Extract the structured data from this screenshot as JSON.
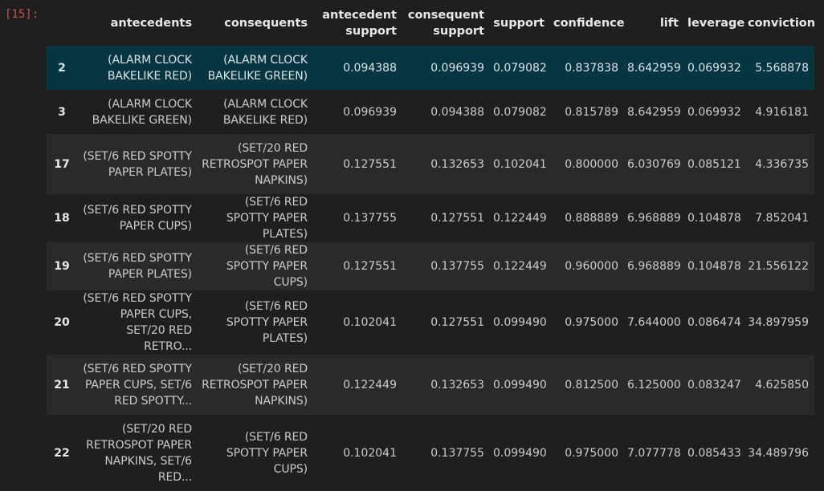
{
  "cell": {
    "execution_count": "[15]:"
  },
  "table": {
    "columns": [
      {
        "key": "antecedents",
        "label": "antecedents"
      },
      {
        "key": "consequents",
        "label": "consequents"
      },
      {
        "key": "antecedent_support",
        "label": "antecedent support"
      },
      {
        "key": "consequent_support",
        "label": "consequent support"
      },
      {
        "key": "support",
        "label": "support"
      },
      {
        "key": "confidence",
        "label": "confidence"
      },
      {
        "key": "lift",
        "label": "lift"
      },
      {
        "key": "leverage",
        "label": "leverage"
      },
      {
        "key": "conviction",
        "label": "conviction"
      }
    ],
    "rows": [
      {
        "index": "2",
        "antecedents": "(ALARM CLOCK BAKELIKE RED)",
        "consequents": "(ALARM CLOCK BAKELIKE GREEN)",
        "antecedent_support": "0.094388",
        "consequent_support": "0.096939",
        "support": "0.079082",
        "confidence": "0.837838",
        "lift": "8.642959",
        "leverage": "0.069932",
        "conviction": "5.568878"
      },
      {
        "index": "3",
        "antecedents": "(ALARM CLOCK BAKELIKE GREEN)",
        "consequents": "(ALARM CLOCK BAKELIKE RED)",
        "antecedent_support": "0.096939",
        "consequent_support": "0.094388",
        "support": "0.079082",
        "confidence": "0.815789",
        "lift": "8.642959",
        "leverage": "0.069932",
        "conviction": "4.916181"
      },
      {
        "index": "17",
        "antecedents": "(SET/6 RED SPOTTY PAPER PLATES)",
        "consequents": "(SET/20 RED RETROSPOT PAPER NAPKINS)",
        "antecedent_support": "0.127551",
        "consequent_support": "0.132653",
        "support": "0.102041",
        "confidence": "0.800000",
        "lift": "6.030769",
        "leverage": "0.085121",
        "conviction": "4.336735"
      },
      {
        "index": "18",
        "antecedents": "(SET/6 RED SPOTTY PAPER CUPS)",
        "consequents": "(SET/6 RED SPOTTY PAPER PLATES)",
        "antecedent_support": "0.137755",
        "consequent_support": "0.127551",
        "support": "0.122449",
        "confidence": "0.888889",
        "lift": "6.968889",
        "leverage": "0.104878",
        "conviction": "7.852041"
      },
      {
        "index": "19",
        "antecedents": "(SET/6 RED SPOTTY PAPER PLATES)",
        "consequents": "(SET/6 RED SPOTTY PAPER CUPS)",
        "antecedent_support": "0.127551",
        "consequent_support": "0.137755",
        "support": "0.122449",
        "confidence": "0.960000",
        "lift": "6.968889",
        "leverage": "0.104878",
        "conviction": "21.556122"
      },
      {
        "index": "20",
        "antecedents": "(SET/6 RED SPOTTY PAPER CUPS, SET/20 RED RETRO...",
        "consequents": "(SET/6 RED SPOTTY PAPER PLATES)",
        "antecedent_support": "0.102041",
        "consequent_support": "0.127551",
        "support": "0.099490",
        "confidence": "0.975000",
        "lift": "7.644000",
        "leverage": "0.086474",
        "conviction": "34.897959"
      },
      {
        "index": "21",
        "antecedents": "(SET/6 RED SPOTTY PAPER CUPS, SET/6 RED SPOTTY...",
        "consequents": "(SET/20 RED RETROSPOT PAPER NAPKINS)",
        "antecedent_support": "0.122449",
        "consequent_support": "0.132653",
        "support": "0.099490",
        "confidence": "0.812500",
        "lift": "6.125000",
        "leverage": "0.083247",
        "conviction": "4.625850"
      },
      {
        "index": "22",
        "antecedents": "(SET/20 RED RETROSPOT PAPER NAPKINS, SET/6 RED...",
        "consequents": "(SET/6 RED SPOTTY PAPER CUPS)",
        "antecedent_support": "0.102041",
        "consequent_support": "0.137755",
        "support": "0.099490",
        "confidence": "0.975000",
        "lift": "7.077778",
        "leverage": "0.085433",
        "conviction": "34.489796"
      }
    ],
    "highlighted_row": 0
  }
}
